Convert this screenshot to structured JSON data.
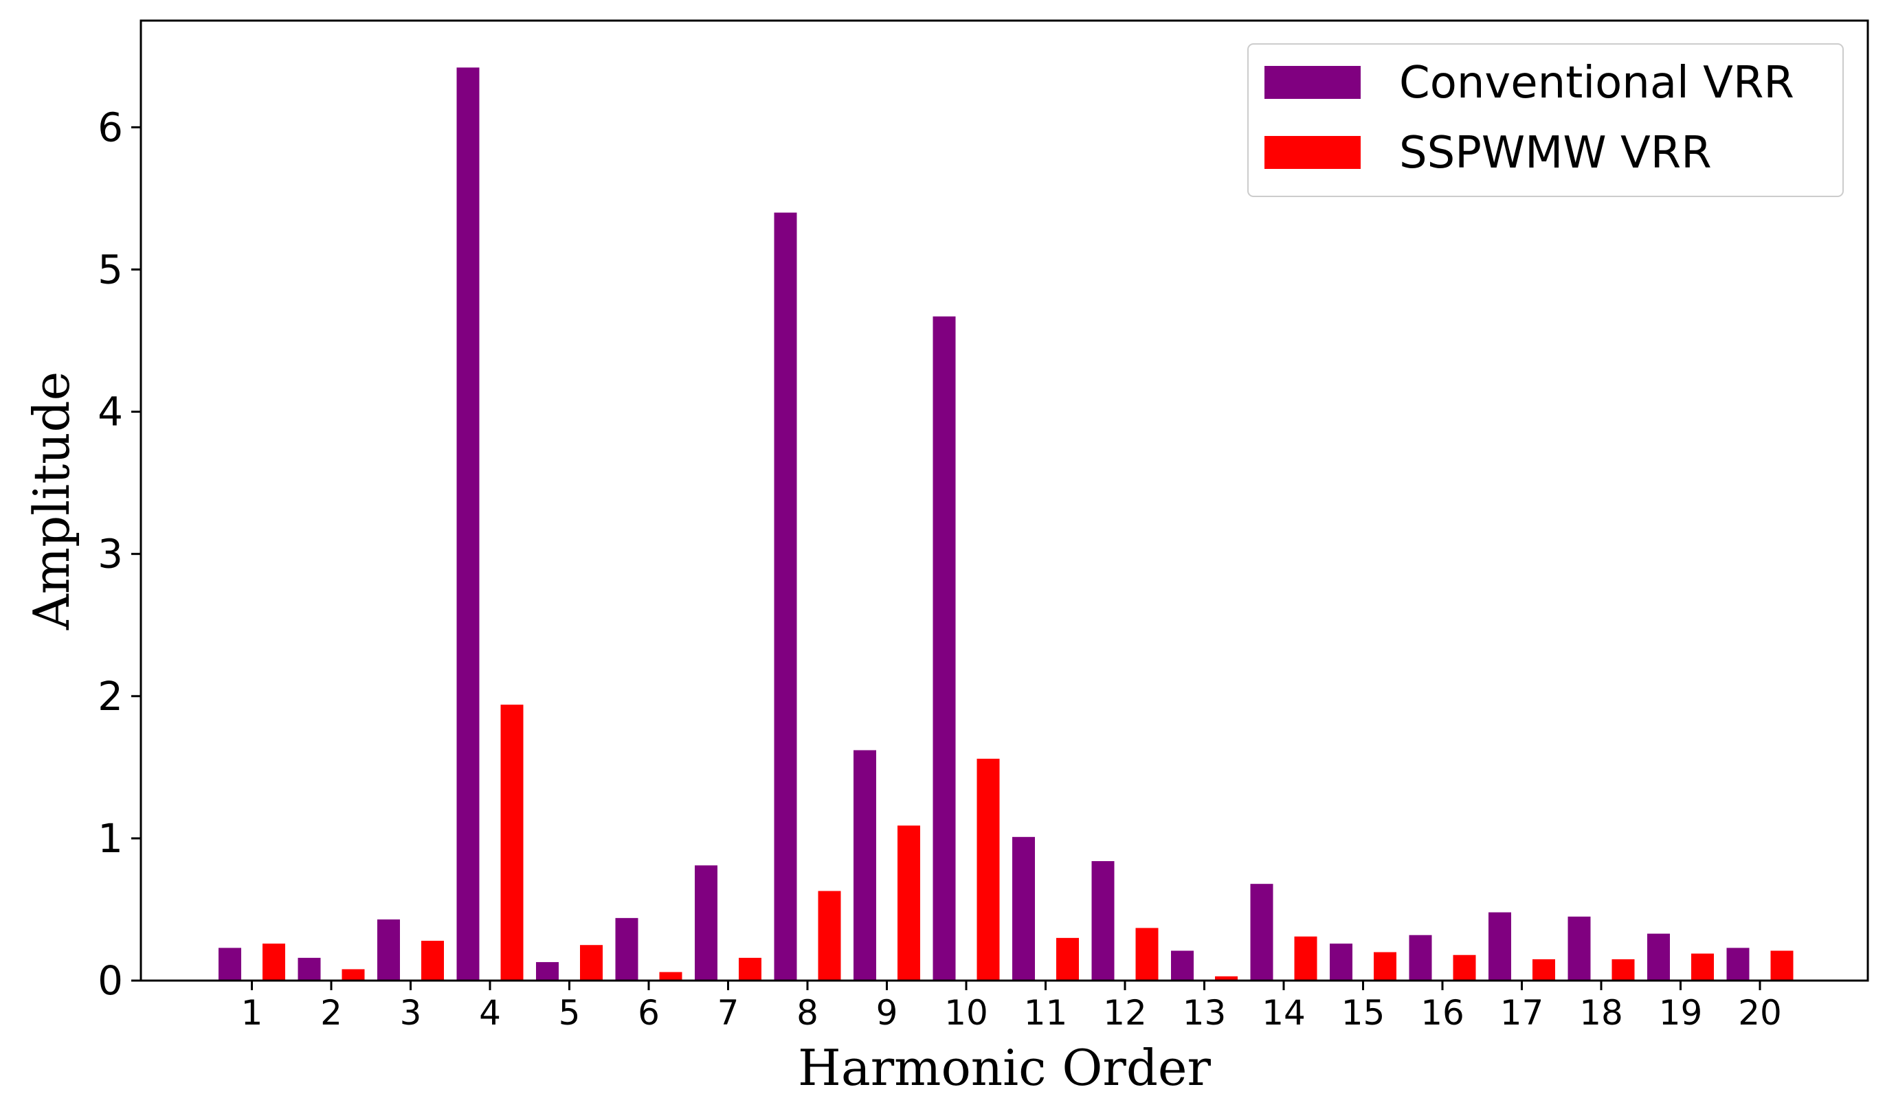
{
  "chart_data": {
    "type": "bar",
    "title": "",
    "xlabel": "Harmonic Order",
    "ylabel": "Amplitude",
    "categories": [
      "1",
      "2",
      "3",
      "4",
      "5",
      "6",
      "7",
      "8",
      "9",
      "10",
      "11",
      "12",
      "13",
      "14",
      "15",
      "16",
      "17",
      "18",
      "19",
      "20"
    ],
    "ylim": [
      0,
      6.75
    ],
    "yticks": [
      0,
      1,
      2,
      3,
      4,
      5,
      6
    ],
    "grid": false,
    "legend_position": "top-right",
    "series": [
      {
        "name": "Conventional VRR",
        "color": "#800080",
        "values": [
          0.23,
          0.16,
          0.43,
          6.42,
          0.13,
          0.44,
          0.81,
          5.4,
          1.62,
          4.67,
          1.01,
          0.84,
          0.21,
          0.68,
          0.26,
          0.32,
          0.48,
          0.45,
          0.33,
          0.23
        ]
      },
      {
        "name": "SSPWMW VRR",
        "color": "#ff0000",
        "values": [
          0.26,
          0.08,
          0.28,
          1.94,
          0.25,
          0.06,
          0.16,
          0.63,
          1.09,
          1.56,
          0.3,
          0.37,
          0.03,
          0.31,
          0.2,
          0.18,
          0.15,
          0.15,
          0.19,
          0.21
        ]
      }
    ]
  }
}
